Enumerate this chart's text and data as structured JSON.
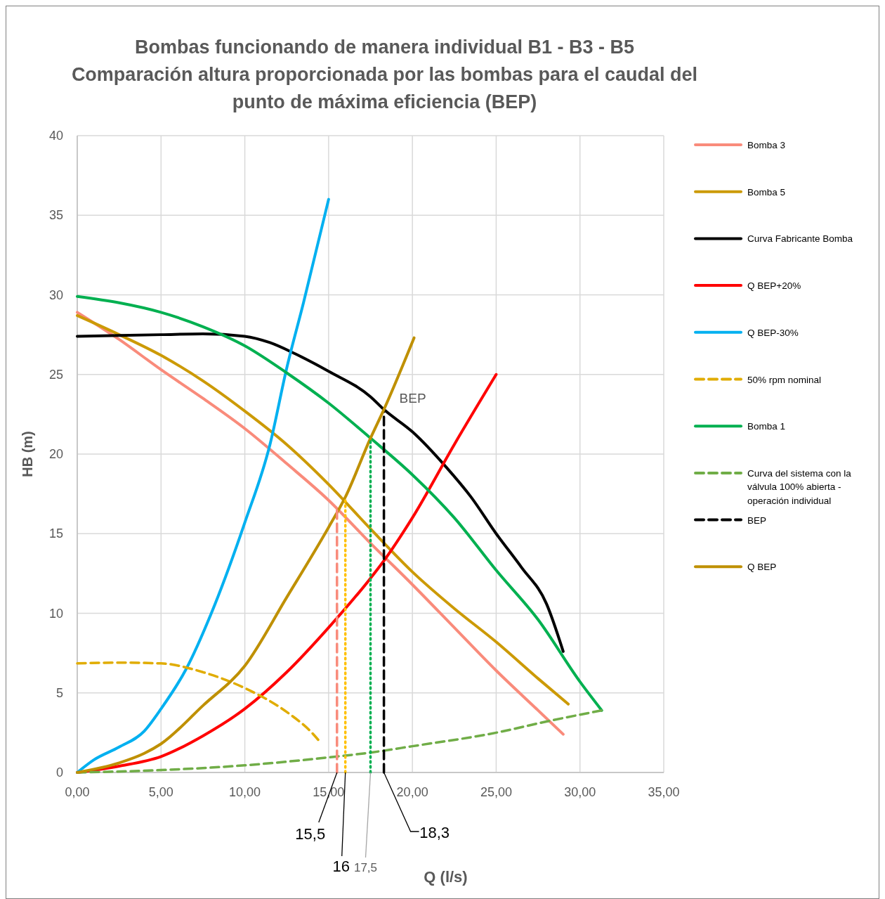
{
  "chart_data": {
    "type": "line",
    "title": "Bombas funcionando de manera individual B1 - B3 - B5",
    "subtitle": "Comparación altura proporcionada por las bombas para el caudal del punto de máxima eficiencia (BEP)",
    "xlabel": "Q (l/s)",
    "ylabel": "HB (m)",
    "xlim": [
      0,
      35
    ],
    "ylim": [
      0,
      40
    ],
    "xticks": [
      {
        "value": 0,
        "label": "0,00"
      },
      {
        "value": 5,
        "label": "5,00"
      },
      {
        "value": 10,
        "label": "10,00"
      },
      {
        "value": 15,
        "label": "15,00"
      },
      {
        "value": 20,
        "label": "20,00"
      },
      {
        "value": 25,
        "label": "25,00"
      },
      {
        "value": 30,
        "label": "30,00"
      },
      {
        "value": 35,
        "label": "35,00"
      }
    ],
    "yticks": [
      0,
      5,
      10,
      15,
      20,
      25,
      30,
      35,
      40
    ],
    "grid": true,
    "legend": "right",
    "marker": "none",
    "series": [
      {
        "name": "Bomba 3",
        "color": "#f98b7b",
        "x": [
          0,
          2.5,
          5,
          7.5,
          10,
          12.5,
          15,
          17.5,
          20,
          22.5,
          25,
          27.5,
          29
        ],
        "values": [
          28.9,
          27.2,
          25.3,
          23.5,
          21.6,
          19.4,
          17.1,
          14.4,
          11.8,
          9.1,
          6.4,
          3.9,
          2.4
        ]
      },
      {
        "name": "Bomba 5",
        "color": "#cc9a06",
        "x": [
          0,
          2.5,
          5,
          7.5,
          10,
          12.5,
          15,
          17.5,
          20,
          22.5,
          25,
          27.5,
          29.3
        ],
        "values": [
          28.7,
          27.5,
          26.2,
          24.6,
          22.7,
          20.6,
          18.1,
          15.3,
          12.6,
          10.3,
          8.2,
          5.9,
          4.3
        ]
      },
      {
        "name": "Curva Fabricante Bomba",
        "color": "#000000",
        "x": [
          0,
          5,
          7.5,
          10,
          11.5,
          13,
          15,
          17.5,
          18.3,
          20,
          22,
          23.5,
          25,
          26.5,
          28,
          29
        ],
        "values": [
          27.4,
          27.5,
          27.55,
          27.4,
          27.0,
          26.3,
          25.2,
          23.6,
          22.8,
          21.4,
          19.2,
          17.3,
          15.0,
          12.9,
          10.6,
          7.6
        ]
      },
      {
        "name": "Q BEP+20%",
        "color": "#ff0000",
        "x": [
          0,
          2.5,
          5,
          7.5,
          10,
          12.5,
          15,
          17.5,
          18.3,
          20,
          22.5,
          25
        ],
        "values": [
          0,
          0.4,
          1.0,
          2.3,
          4.0,
          6.3,
          9.1,
          12.2,
          13.3,
          16.0,
          20.6,
          25.0
        ]
      },
      {
        "name": "Q BEP-30%",
        "color": "#00b0f0",
        "x": [
          0,
          1,
          2.5,
          4,
          5,
          6.5,
          8,
          10,
          11.5,
          12.5,
          13.5,
          15
        ],
        "values": [
          0,
          0.8,
          1.6,
          2.6,
          4.0,
          6.5,
          10.0,
          15.7,
          20.6,
          25.4,
          29.5,
          36.0
        ]
      },
      {
        "name": "50% rpm nominal",
        "color": "#e0ac00",
        "line_style": "dashed",
        "x": [
          0,
          2.5,
          5,
          7.5,
          10,
          12.5,
          14,
          14.5
        ],
        "values": [
          6.85,
          6.9,
          6.85,
          6.3,
          5.3,
          3.8,
          2.5,
          1.9
        ]
      },
      {
        "name": "Bomba 1",
        "color": "#00b050",
        "x": [
          0,
          2.5,
          5,
          7.5,
          10,
          12.5,
          15,
          17.5,
          20,
          22.5,
          25,
          27.5,
          30,
          31.3
        ],
        "values": [
          29.9,
          29.5,
          28.9,
          28.0,
          26.8,
          25.1,
          23.2,
          21.0,
          18.7,
          16.0,
          12.7,
          9.6,
          5.7,
          3.9
        ]
      },
      {
        "name": "Curva del sistema con la válvula 100% abierta - operación individual",
        "color": "#70ad47",
        "line_style": "dashed",
        "x": [
          0,
          5,
          10,
          15,
          17.5,
          20,
          25,
          28,
          31.3
        ],
        "values": [
          0,
          0.15,
          0.45,
          0.95,
          1.25,
          1.65,
          2.5,
          3.2,
          3.9
        ]
      },
      {
        "name": "BEP",
        "color": "#000000",
        "line_style": "dashed",
        "x": [
          18.3,
          18.3
        ],
        "values": [
          0,
          22.8
        ]
      },
      {
        "name": "Q BEP",
        "color": "#bf9000",
        "x": [
          0,
          2.5,
          4,
          5,
          7.5,
          10,
          12.5,
          15,
          16,
          17.5,
          18.3,
          20.1
        ],
        "values": [
          0,
          0.6,
          1.2,
          1.8,
          4.2,
          6.7,
          11.0,
          15.4,
          17.3,
          21.0,
          22.8,
          27.3
        ]
      },
      {
        "color": "#f98b7b",
        "line_style": "dashed",
        "x": [
          15.5,
          15.5
        ],
        "values": [
          0,
          16.6
        ]
      },
      {
        "color": "#ffc000",
        "line_style": "dotted",
        "x": [
          16,
          16
        ],
        "values": [
          0,
          17.3
        ]
      },
      {
        "color": "#00b050",
        "line_style": "dotted",
        "x": [
          17.5,
          17.5
        ],
        "values": [
          0,
          21.0
        ]
      }
    ],
    "annotations": [
      {
        "text": "BEP",
        "x": 18.3,
        "y": 22.8
      },
      {
        "text": "15,5",
        "x": 15.5,
        "y": 0
      },
      {
        "text": "16",
        "x": 16,
        "y": 0
      },
      {
        "text": "17,5",
        "x": 17.5,
        "y": 0
      },
      {
        "text": "18,3",
        "x": 18.3,
        "y": 0
      }
    ]
  }
}
